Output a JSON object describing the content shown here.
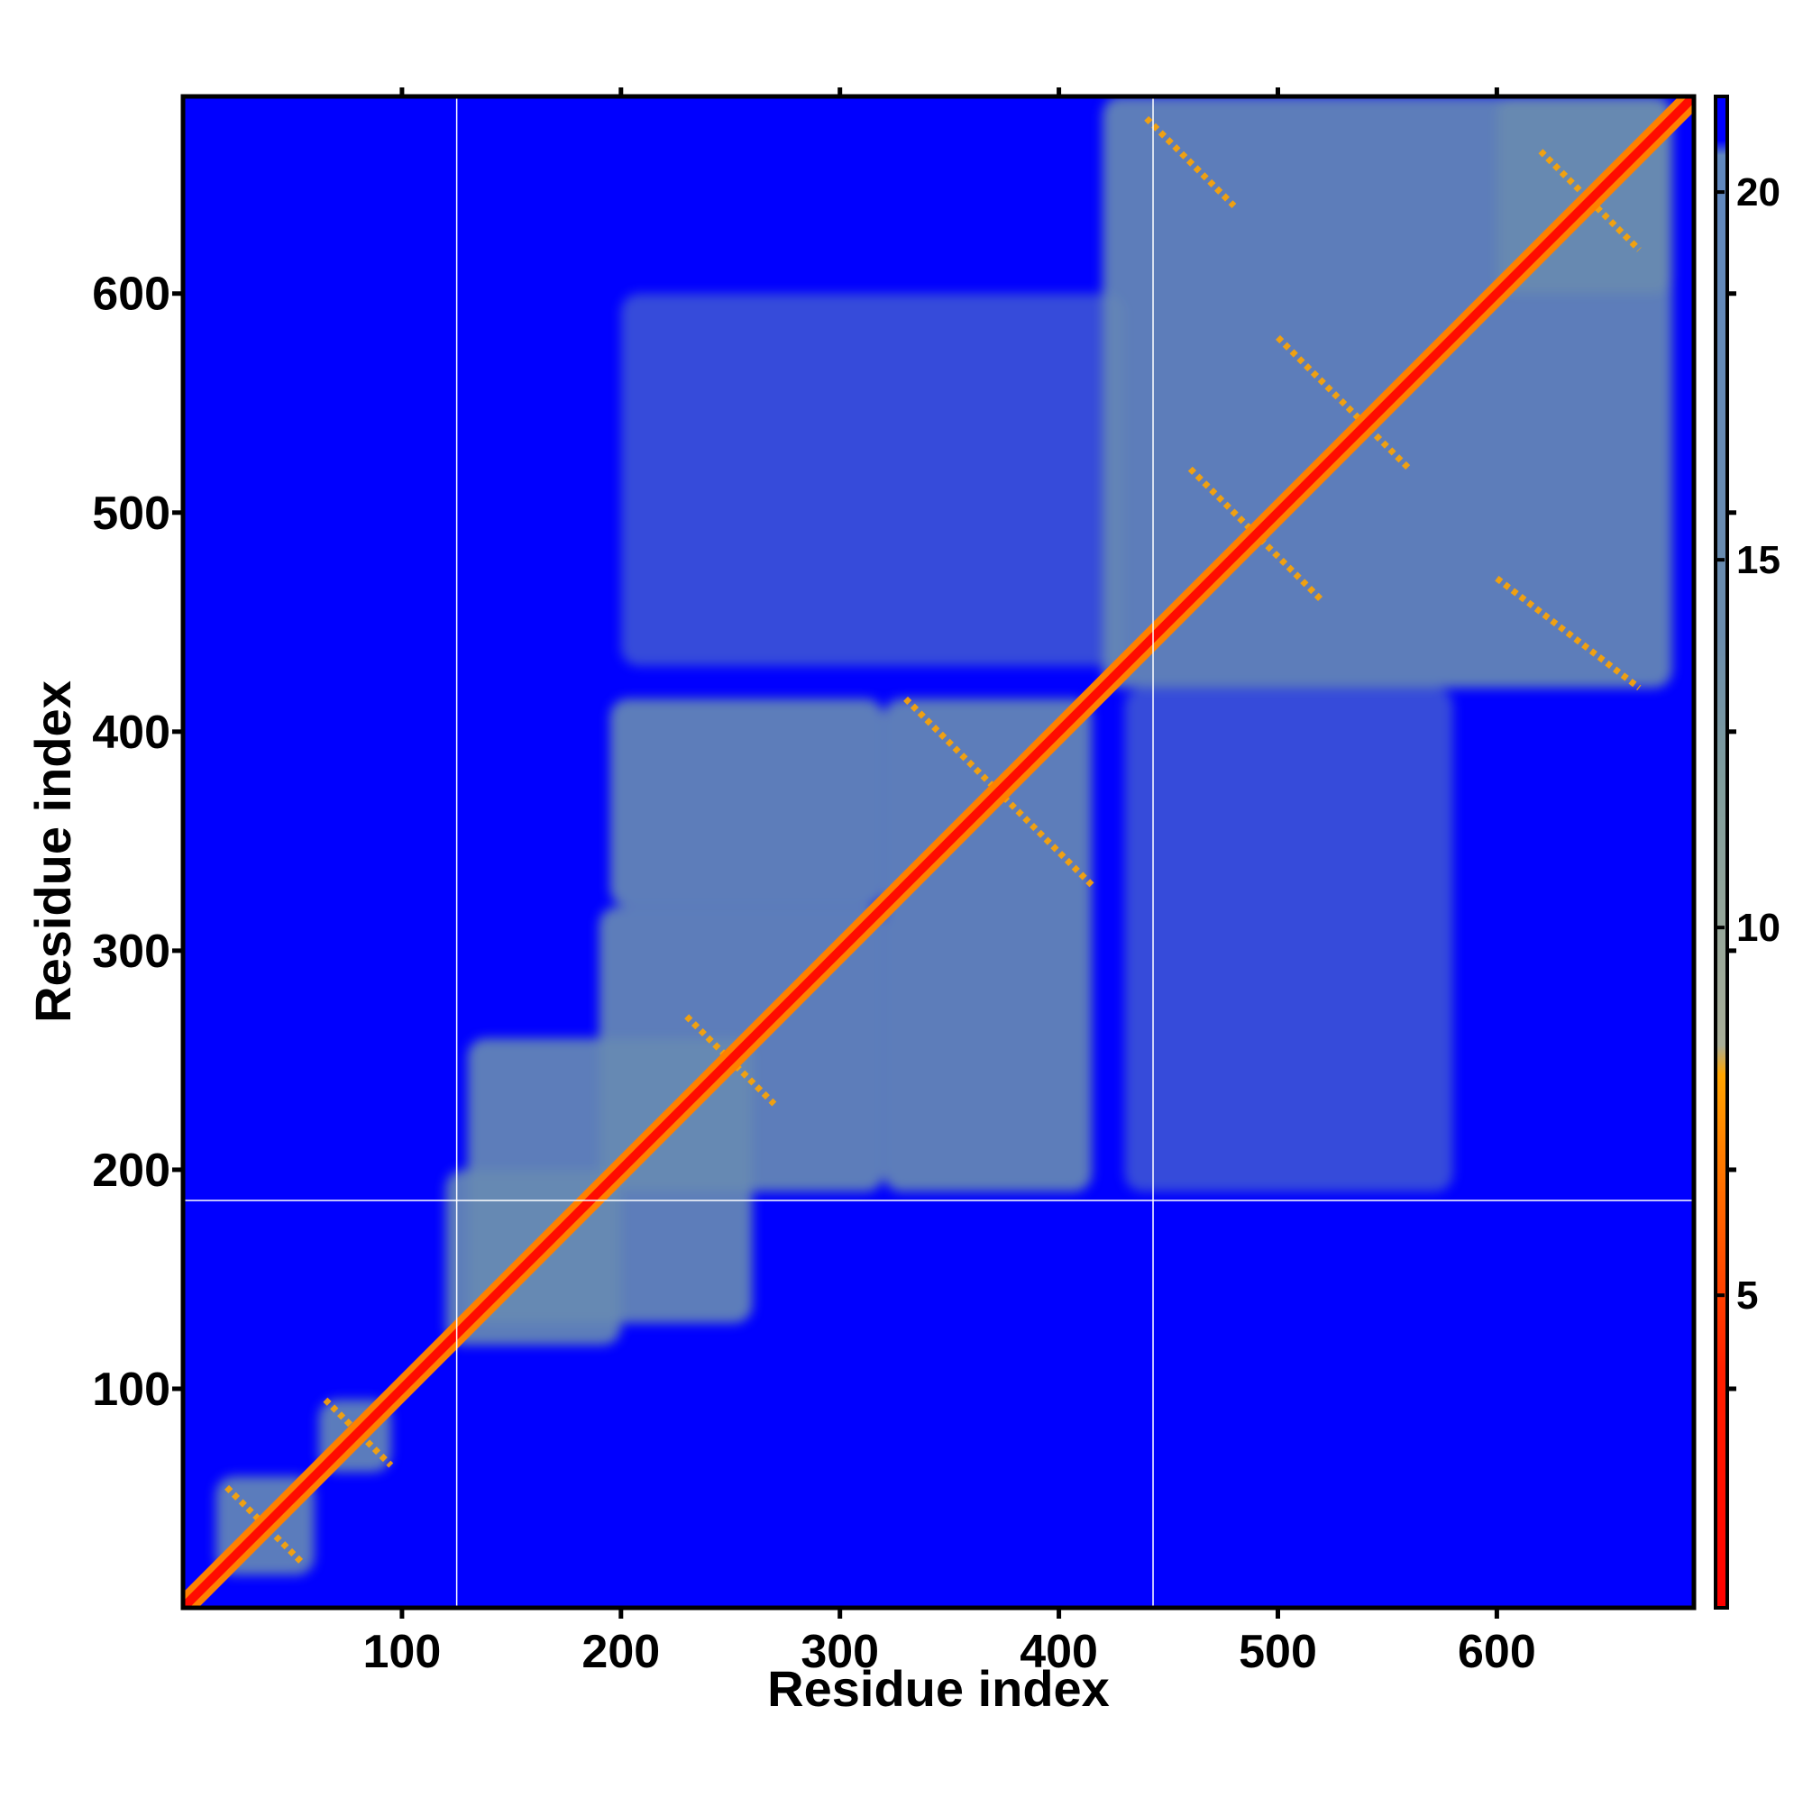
{
  "chart_data": {
    "type": "heatmap",
    "xlabel": "Residue index",
    "ylabel": "Residue index",
    "xlim": [
      0,
      690
    ],
    "ylim": [
      0,
      690
    ],
    "xticks": [
      100,
      200,
      300,
      400,
      500,
      600
    ],
    "yticks": [
      100,
      200,
      300,
      400,
      500,
      600
    ],
    "background": 21,
    "clim": [
      0.75,
      21.3
    ],
    "cticks": [
      5,
      10,
      15,
      20
    ],
    "colorscale": [
      [
        0.75,
        "#ff0000"
      ],
      [
        4,
        "#ff2000"
      ],
      [
        7,
        "#ff8000"
      ],
      [
        8,
        "#ffa500"
      ],
      [
        8.4,
        "#a8ae98"
      ],
      [
        12,
        "#7f9d9c"
      ],
      [
        14,
        "#6a8cad"
      ],
      [
        20.5,
        "#6088bf"
      ],
      [
        20.7,
        "#0000ff"
      ]
    ],
    "vlines": [
      125,
      443
    ],
    "hlines": [
      186
    ],
    "blocks": [
      {
        "x": [
          430,
          580
        ],
        "y": [
          190,
          420
        ],
        "value": 19.5
      },
      {
        "x": [
          200,
          430
        ],
        "y": [
          430,
          600
        ],
        "value": 19.5
      },
      {
        "x": [
          15,
          60
        ],
        "y": [
          15,
          60
        ],
        "value": 17
      },
      {
        "x": [
          62,
          95
        ],
        "y": [
          62,
          95
        ],
        "value": 17
      },
      {
        "x": [
          120,
          200
        ],
        "y": [
          120,
          200
        ],
        "value": 16
      },
      {
        "x": [
          130,
          260
        ],
        "y": [
          130,
          260
        ],
        "value": 16
      },
      {
        "x": [
          190,
          320
        ],
        "y": [
          190,
          320
        ],
        "value": 16
      },
      {
        "x": [
          320,
          415
        ],
        "y": [
          190,
          415
        ],
        "value": 16
      },
      {
        "x": [
          195,
          320
        ],
        "y": [
          320,
          415
        ],
        "value": 16
      },
      {
        "x": [
          420,
          680
        ],
        "y": [
          420,
          690
        ],
        "value": 16
      },
      {
        "x": [
          600,
          680
        ],
        "y": [
          600,
          690
        ],
        "value": 15
      }
    ],
    "diagonal": {
      "x": [
        0,
        690
      ],
      "y": [
        0,
        690
      ],
      "value": 2
    },
    "stripes": [
      {
        "x": [
          20,
          55
        ],
        "y": [
          55,
          20
        ],
        "value": 8
      },
      {
        "x": [
          65,
          95
        ],
        "y": [
          95,
          65
        ],
        "value": 8
      },
      {
        "x": [
          230,
          270
        ],
        "y": [
          270,
          230
        ],
        "value": 8
      },
      {
        "x": [
          330,
          415
        ],
        "y": [
          415,
          330
        ],
        "value": 8
      },
      {
        "x": [
          460,
          520
        ],
        "y": [
          520,
          460
        ],
        "value": 8
      },
      {
        "x": [
          500,
          560
        ],
        "y": [
          580,
          520
        ],
        "value": 8
      },
      {
        "x": [
          620,
          665
        ],
        "y": [
          665,
          620
        ],
        "value": 8
      },
      {
        "x": [
          440,
          480
        ],
        "y": [
          680,
          640
        ],
        "value": 8
      },
      {
        "x": [
          600,
          665
        ],
        "y": [
          470,
          420
        ],
        "value": 8
      }
    ]
  }
}
